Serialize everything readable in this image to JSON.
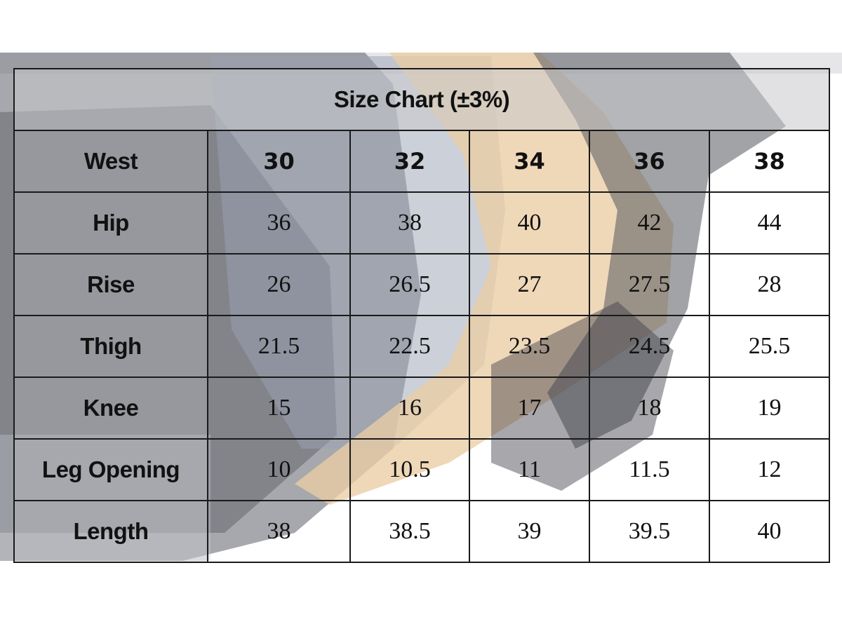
{
  "title": "Size Chart (±3%)",
  "header": {
    "label": "West",
    "sizes": [
      "30",
      "32",
      "34",
      "36",
      "38"
    ]
  },
  "rows": [
    {
      "label": "Hip",
      "values": [
        "36",
        "38",
        "40",
        "42",
        "44"
      ]
    },
    {
      "label": "Rise",
      "values": [
        "26",
        "26.5",
        "27",
        "27.5",
        "28"
      ]
    },
    {
      "label": "Thigh",
      "values": [
        "21.5",
        "22.5",
        "23.5",
        "24.5",
        "25.5"
      ]
    },
    {
      "label": "Knee",
      "values": [
        "15",
        "16",
        "17",
        "18",
        "19"
      ]
    },
    {
      "label": "Leg Opening",
      "values": [
        "10",
        "10.5",
        "11",
        "11.5",
        "12"
      ]
    },
    {
      "label": "Length",
      "values": [
        "38",
        "38.5",
        "39",
        "39.5",
        "40"
      ]
    }
  ],
  "colors": {
    "border": "#1a1a1a",
    "text": "#111111",
    "garment_dark": "#4a4d57",
    "garment_mid": "#8e939f",
    "garment_khaki": "#e8c9a0"
  }
}
